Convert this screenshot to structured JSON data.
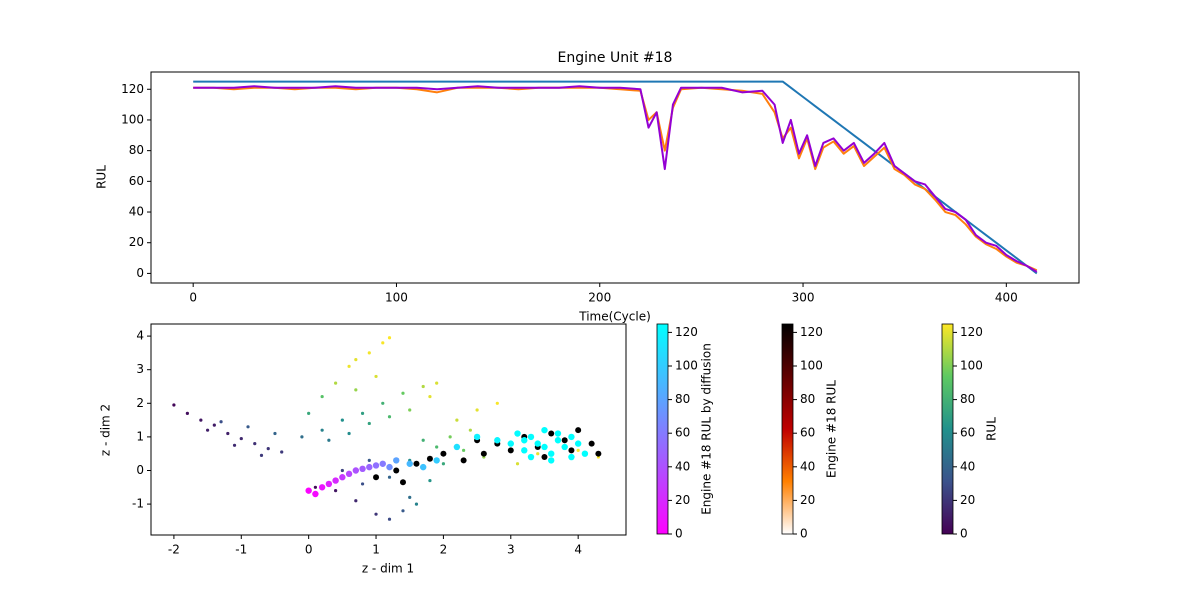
{
  "chart_data": [
    {
      "type": "line",
      "title": "Engine Unit #18",
      "xlabel": "Time(Cycle)",
      "ylabel": "RUL",
      "xlim": [
        -20.75,
        435.75
      ],
      "ylim": [
        -6.25,
        131.25
      ],
      "xticks": [
        0,
        100,
        200,
        300,
        400
      ],
      "yticks": [
        0,
        20,
        40,
        60,
        80,
        100,
        120
      ],
      "x": [
        0,
        10,
        20,
        30,
        40,
        50,
        60,
        70,
        80,
        90,
        100,
        110,
        120,
        130,
        140,
        150,
        160,
        170,
        180,
        190,
        200,
        210,
        220,
        224,
        228,
        232,
        236,
        240,
        250,
        260,
        270,
        280,
        286,
        290,
        294,
        298,
        302,
        306,
        310,
        315,
        320,
        325,
        330,
        335,
        340,
        345,
        350,
        355,
        360,
        365,
        370,
        375,
        380,
        385,
        390,
        395,
        400,
        405,
        410,
        415
      ],
      "series": [
        {
          "color": "#1f77b4",
          "values": [
            125,
            125,
            125,
            125,
            125,
            125,
            125,
            125,
            125,
            125,
            125,
            125,
            125,
            125,
            125,
            125,
            125,
            125,
            125,
            125,
            125,
            125,
            125,
            125,
            125,
            125,
            125,
            125,
            125,
            125,
            125,
            125,
            125,
            125,
            121,
            117,
            113,
            109,
            105,
            100,
            95,
            90,
            85,
            80,
            75,
            70,
            65,
            60,
            55,
            50,
            45,
            40,
            35,
            30,
            25,
            20,
            15,
            10,
            5,
            0
          ]
        },
        {
          "color": "#ff7f0e",
          "values": [
            121,
            121,
            120,
            121,
            121,
            120,
            121,
            121,
            120,
            121,
            121,
            120,
            118,
            121,
            121,
            121,
            120,
            121,
            121,
            121,
            121,
            120,
            119,
            100,
            105,
            80,
            108,
            120,
            121,
            120,
            119,
            117,
            105,
            88,
            95,
            75,
            88,
            68,
            82,
            86,
            78,
            83,
            70,
            76,
            82,
            68,
            64,
            58,
            55,
            48,
            40,
            38,
            32,
            24,
            19,
            16,
            11,
            7,
            5,
            2
          ]
        },
        {
          "color": "#9400d3",
          "values": [
            121,
            121,
            121,
            122,
            121,
            121,
            121,
            122,
            121,
            121,
            121,
            121,
            120,
            121,
            122,
            121,
            121,
            121,
            121,
            122,
            121,
            121,
            120,
            95,
            105,
            68,
            110,
            121,
            121,
            121,
            118,
            119,
            110,
            85,
            100,
            78,
            90,
            70,
            85,
            88,
            80,
            85,
            72,
            78,
            85,
            70,
            65,
            60,
            58,
            50,
            42,
            40,
            35,
            25,
            20,
            18,
            12,
            8,
            5,
            1
          ]
        }
      ]
    },
    {
      "type": "scatter",
      "xlabel": "z - dim 1",
      "ylabel": "z - dim 2",
      "xlim": [
        -2.34,
        4.71
      ],
      "ylim": [
        -1.92,
        4.36
      ],
      "xticks": [
        -2,
        -1,
        0,
        1,
        2,
        3,
        4
      ],
      "yticks": [
        -1,
        0,
        1,
        2,
        3,
        4
      ],
      "series": [
        {
          "name": "RUL",
          "colors": [
            "#440154",
            "#3b528b",
            "#21918c",
            "#5ec962",
            "#fde725"
          ],
          "size": 1.6,
          "clim": [
            0,
            125
          ],
          "cticks": [
            0,
            20,
            40,
            60,
            80,
            100,
            120
          ],
          "x": [
            -2.0,
            -1.8,
            -1.6,
            -1.4,
            -1.2,
            -1.0,
            -0.8,
            -0.6,
            -0.4,
            -1.5,
            -1.1,
            -0.7,
            -1.3,
            -0.9,
            -0.5,
            -0.1,
            0.2,
            0.5,
            0.8,
            1.1,
            1.4,
            1.7,
            1.9,
            0.3,
            0.6,
            0.9,
            1.2,
            1.5,
            1.8,
            0.2,
            0.4,
            0.0,
            0.7,
            1.0,
            0.6,
            0.9,
            1.1,
            1.2,
            0.7,
            0.1,
            0.4,
            0.7,
            1.0,
            1.2,
            1.5,
            1.4,
            0.8,
            1.6,
            1.2,
            1.8,
            1.5,
            2.0,
            1.9,
            2.3,
            2.6,
            2.8,
            3.1,
            3.4,
            3.7,
            4.0,
            4.3,
            2.2,
            2.5,
            2.8,
            2.4,
            0.5,
            0.9,
            1.7,
            2.1
          ],
          "y": [
            1.95,
            1.7,
            1.5,
            1.35,
            1.1,
            0.95,
            0.8,
            0.65,
            0.55,
            1.2,
            0.75,
            0.45,
            1.45,
            1.3,
            1.1,
            1.0,
            1.2,
            1.5,
            1.7,
            2.0,
            2.3,
            2.5,
            2.6,
            0.9,
            1.1,
            1.4,
            1.6,
            1.8,
            2.2,
            2.2,
            2.6,
            1.7,
            2.4,
            2.8,
            3.1,
            3.5,
            3.8,
            3.95,
            3.3,
            -0.5,
            -0.6,
            -0.9,
            -1.3,
            -1.45,
            -0.8,
            -1.2,
            -0.4,
            -1.0,
            -0.2,
            -0.3,
            0.3,
            0.2,
            0.7,
            0.6,
            0.4,
            0.9,
            0.2,
            0.5,
            0.9,
            0.6,
            0.4,
            1.5,
            1.8,
            2.0,
            1.2,
            0.0,
            0.3,
            0.9,
            1.0
          ],
          "c": [
            2,
            5,
            8,
            10,
            12,
            15,
            18,
            20,
            22,
            12,
            16,
            22,
            30,
            35,
            40,
            45,
            55,
            62,
            70,
            80,
            95,
            110,
            118,
            50,
            60,
            72,
            85,
            100,
            120,
            90,
            110,
            75,
            105,
            118,
            122,
            123,
            124,
            125,
            120,
            3,
            8,
            15,
            20,
            28,
            45,
            35,
            30,
            55,
            40,
            65,
            60,
            75,
            85,
            95,
            105,
            112,
            118,
            120,
            122,
            124,
            125,
            115,
            120,
            124,
            110,
            25,
            35,
            80,
            98
          ]
        },
        {
          "name": "Engine #18 RUL",
          "colors": [
            "#ffffff",
            "#ff8000",
            "#bf0000",
            "#600000",
            "#000000"
          ],
          "size": 3,
          "clim": [
            0,
            125
          ],
          "cticks": [
            0,
            20,
            40,
            60,
            80,
            100,
            120
          ],
          "x": [
            1.0,
            1.3,
            1.6,
            1.8,
            2.0,
            2.3,
            2.6,
            2.8,
            3.0,
            3.2,
            3.4,
            3.6,
            3.8,
            4.0,
            4.2,
            4.3,
            3.5,
            3.9,
            2.5,
            1.4
          ],
          "y": [
            -0.2,
            0.0,
            0.2,
            0.35,
            0.5,
            0.3,
            0.5,
            0.8,
            0.6,
            1.0,
            0.7,
            1.1,
            0.9,
            1.2,
            0.8,
            0.5,
            0.4,
            0.6,
            0.9,
            -0.35
          ],
          "c": [
            125,
            125,
            125,
            125,
            125,
            125,
            125,
            125,
            125,
            125,
            125,
            125,
            125,
            125,
            125,
            125,
            124,
            124,
            125,
            125
          ]
        },
        {
          "name": "Engine #18 RUL by diffusion",
          "colors": [
            "#ff00ff",
            "#00ffff"
          ],
          "size": 3.2,
          "clim": [
            0,
            125
          ],
          "cticks": [
            0,
            20,
            40,
            60,
            80,
            100,
            120
          ],
          "x": [
            0.0,
            0.1,
            0.2,
            0.3,
            0.4,
            0.5,
            0.6,
            0.7,
            0.8,
            0.9,
            1.0,
            1.1,
            1.2,
            1.3,
            1.5,
            1.7,
            1.9,
            2.2,
            2.5,
            2.8,
            3.0,
            3.1,
            3.2,
            3.3,
            3.4,
            3.5,
            3.6,
            3.7,
            3.8,
            3.9,
            4.0,
            3.3,
            3.6,
            3.7,
            3.2,
            3.5,
            3.9,
            4.1
          ],
          "y": [
            -0.6,
            -0.7,
            -0.5,
            -0.4,
            -0.3,
            -0.2,
            -0.1,
            0.0,
            0.05,
            0.1,
            0.15,
            0.2,
            0.1,
            0.3,
            0.2,
            0.1,
            0.3,
            0.7,
            1.0,
            0.9,
            0.8,
            1.1,
            0.6,
            1.0,
            0.8,
            1.2,
            0.5,
            0.9,
            0.7,
            0.4,
            0.8,
            0.4,
            0.3,
            1.1,
            0.9,
            0.7,
            1.0,
            0.5
          ],
          "c": [
            2,
            5,
            10,
            15,
            20,
            28,
            35,
            40,
            45,
            50,
            55,
            60,
            70,
            80,
            90,
            95,
            100,
            110,
            118,
            120,
            122,
            123,
            124,
            124,
            125,
            125,
            125,
            125,
            125,
            125,
            125,
            125,
            125,
            125,
            125,
            125,
            125,
            125
          ]
        }
      ]
    }
  ]
}
